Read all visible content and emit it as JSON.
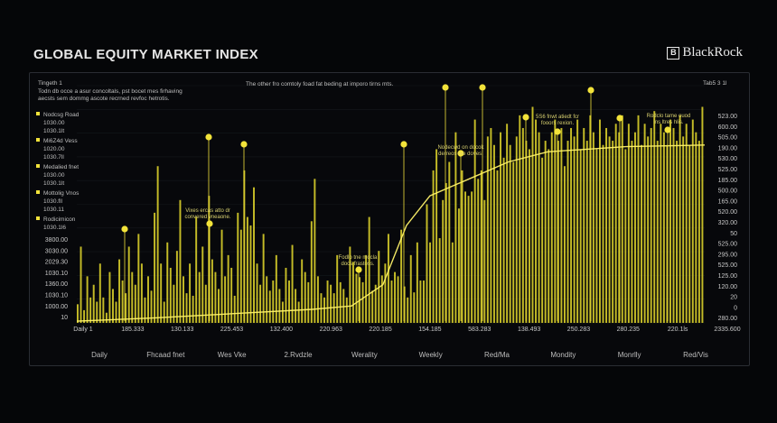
{
  "header": {
    "title": "GLOBAL EQUITY MARKET INDEX",
    "brand": "BlackRock",
    "brand_mark": "B"
  },
  "panel": {
    "top_left_label": "Tingeth 1",
    "top_left_note_1": "Todn db occe a asur concoltals, pst bocet mes firhaving",
    "top_left_note_2": "aecsts sem dommg ascote recrned revfoc hetrotis.",
    "top_center_note": "The other fro comtoly foad fat beding at imporo tirns mts.",
    "top_right_label": "Tab5 3 1l"
  },
  "colors": {
    "accent": "#f2e33a",
    "bar": "#d9cf2a",
    "background": "#050608",
    "grid": "#15181c"
  },
  "chart_data": {
    "type": "bar",
    "title": "GLOBAL EQUITY MARKET INDEX",
    "legend": [
      {
        "name": "Nodcsg Road",
        "value": "1030.00",
        "sub": "1030.1lt"
      },
      {
        "name": "Mi6Z4d Vess",
        "value": "1020.00",
        "sub": "1030.7ll"
      },
      {
        "name": "Medalied fnet",
        "value": "1030.00",
        "sub": "1030.1lt"
      },
      {
        "name": "Mottolig Vnos",
        "value": "1030.fll",
        "sub": "1030.11"
      },
      {
        "name": "Rodicimicon",
        "value": "1030.1l6",
        "sub": ""
      }
    ],
    "y_left_labels": [
      "3800.00",
      "3030.00",
      "2029.30",
      "1030.10",
      "1360.00",
      "1030.10",
      "1000.00",
      "10"
    ],
    "y_right_labels": [
      "523.00",
      "600.00",
      "505.00",
      "190.00",
      "530.00",
      "525.00",
      "185.00",
      "500.00",
      "165.00",
      "520.00",
      "320.00",
      "50",
      "525.00",
      "295.00",
      "525.00",
      "125.00",
      "120.00",
      "20",
      "0",
      "280.00"
    ],
    "x_labels": [
      "Daily 1",
      "185.333",
      "130.133",
      "225.453",
      "132.400",
      "220.963",
      "220.185",
      "154.185",
      "583.283",
      "138.493",
      "250.283",
      "280.235",
      "220.1ls",
      "2335.600"
    ],
    "period_labels": [
      "Daily",
      "Fhcaad fnet",
      "Wes Vke",
      "2.Rvdzle",
      "Werality",
      "Weekly",
      "Red/Ma",
      "Mondity",
      "Monrlly",
      "Red/Vis"
    ],
    "annotations": [
      {
        "text_1": "Vixes ercas atto dr",
        "text_2": "convered vneaone."
      },
      {
        "text_1": "Fodlo tne mocla",
        "text_2": "docs frastoss."
      },
      {
        "text_1": "Nodecwd on docok",
        "text_2": "derreos rve doves."
      },
      {
        "text_1": "5S6 fnwt atiedt fcr",
        "text_2": "fooors rexion."
      },
      {
        "text_1": "Rodclo tame ouod",
        "text_2": "ins ltres hlis."
      }
    ],
    "trend_line": [
      [
        0,
        1020
      ],
      [
        20,
        1060
      ],
      [
        40,
        1110
      ],
      [
        60,
        1160
      ],
      [
        70,
        1200
      ],
      [
        78,
        1450
      ],
      [
        84,
        2150
      ],
      [
        90,
        2500
      ],
      [
        100,
        2700
      ],
      [
        110,
        2900
      ],
      [
        120,
        3020
      ],
      [
        140,
        3080
      ],
      [
        160,
        3100
      ]
    ],
    "x_range": [
      0,
      160
    ],
    "y_range": [
      1000,
      3800
    ],
    "bar_values": [
      1220,
      1900,
      1150,
      1550,
      1300,
      1450,
      1250,
      1700,
      1300,
      1120,
      1600,
      1400,
      1250,
      1750,
      1500,
      1350,
      1900,
      1600,
      1450,
      2050,
      1700,
      1300,
      1550,
      1380,
      2300,
      2850,
      1700,
      1250,
      1950,
      1650,
      1450,
      1850,
      2450,
      1550,
      1350,
      1700,
      1320,
      2250,
      1600,
      1900,
      1450,
      2500,
      1750,
      1600,
      1400,
      2100,
      1550,
      1800,
      1650,
      1320,
      2300,
      2100,
      2800,
      2250,
      2150,
      2600,
      1700,
      1450,
      2050,
      1550,
      1380,
      1500,
      1800,
      1400,
      1250,
      1650,
      1500,
      1920,
      1400,
      1250,
      1750,
      1600,
      1480,
      2200,
      2700,
      1550,
      1350,
      1300,
      1500,
      1450,
      1350,
      1800,
      1480,
      1400,
      1300,
      1900,
      1720,
      1580,
      1540,
      1480,
      1800,
      2250,
      1380,
      1450,
      1850,
      1560,
      1700,
      2050,
      1500,
      1600,
      1550,
      2100,
      1430,
      1300,
      1800,
      1360,
      1950,
      1500,
      1500,
      2400,
      1950,
      2800,
      3050,
      2000,
      2450,
      2650,
      2900,
      1950,
      3250,
      2350,
      2800,
      2550,
      2500,
      2550,
      3400,
      2700,
      2800,
      2450,
      3200,
      3300,
      3100,
      2800,
      3250,
      2950,
      3350,
      3100,
      2900,
      3200,
      3450,
      3300,
      3150,
      3050,
      3550,
      3400,
      3250,
      2950,
      3150,
      3050,
      3250,
      3400,
      3150,
      3300,
      2850,
      3150,
      3300,
      3200,
      3400,
      3050,
      3300,
      3150,
      3450,
      3250,
      3050,
      3400,
      3100,
      3300,
      3200,
      3150,
      3350,
      3250,
      3450,
      3050,
      3350,
      3150,
      3250,
      3450,
      3100,
      3350,
      3200,
      3300,
      3500,
      3150,
      3350,
      3250,
      3100,
      3400,
      3300,
      3150,
      3450,
      3200,
      3350,
      3100,
      3400,
      3250,
      3150,
      3550
    ]
  }
}
